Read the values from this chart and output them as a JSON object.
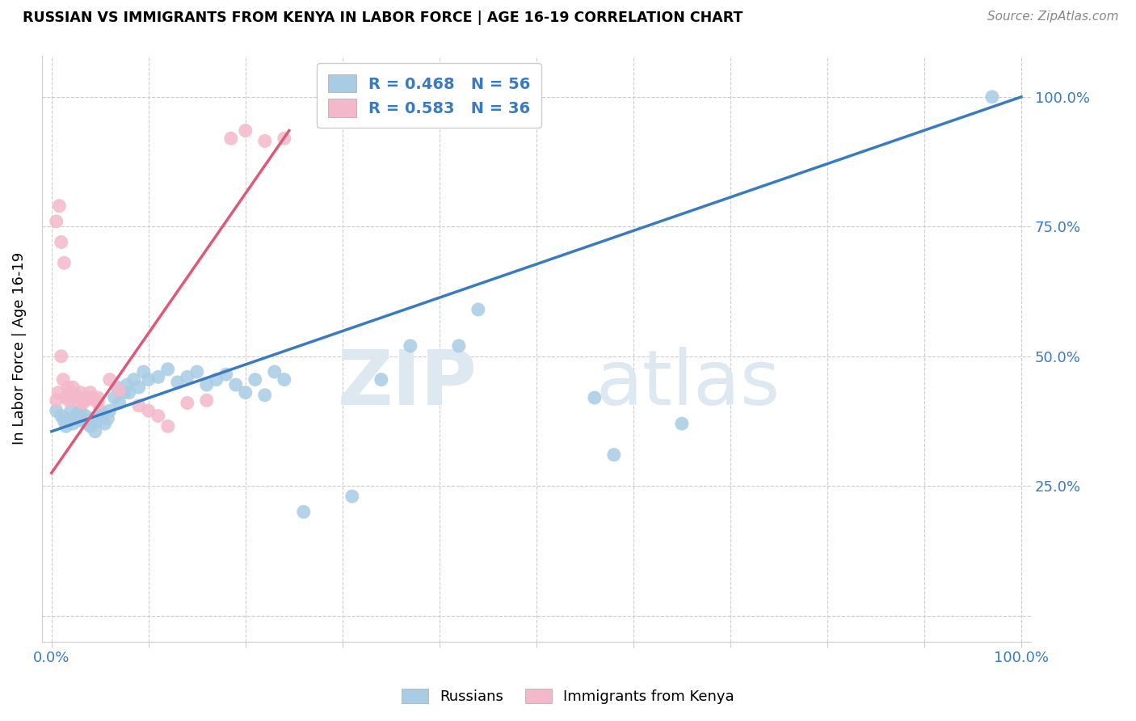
{
  "title": "RUSSIAN VS IMMIGRANTS FROM KENYA IN LABOR FORCE | AGE 16-19 CORRELATION CHART",
  "source": "Source: ZipAtlas.com",
  "ylabel_label": "In Labor Force | Age 16-19",
  "legend_entry1": "R = 0.468   N = 56",
  "legend_entry2": "R = 0.583   N = 36",
  "legend_label1": "Russians",
  "legend_label2": "Immigrants from Kenya",
  "blue_color": "#a8cce4",
  "pink_color": "#f4b8cb",
  "blue_line_color": "#3a7abf",
  "pink_line_color": "#e05878",
  "legend_text_color": "#3a7abf",
  "watermark_zip": "ZIP",
  "watermark_atlas": "atlas",
  "blue_dots": [
    [
      0.005,
      0.395
    ],
    [
      0.01,
      0.385
    ],
    [
      0.013,
      0.375
    ],
    [
      0.015,
      0.365
    ],
    [
      0.018,
      0.38
    ],
    [
      0.02,
      0.395
    ],
    [
      0.022,
      0.37
    ],
    [
      0.025,
      0.38
    ],
    [
      0.027,
      0.39
    ],
    [
      0.03,
      0.395
    ],
    [
      0.032,
      0.375
    ],
    [
      0.035,
      0.385
    ],
    [
      0.037,
      0.37
    ],
    [
      0.04,
      0.365
    ],
    [
      0.042,
      0.38
    ],
    [
      0.045,
      0.355
    ],
    [
      0.048,
      0.375
    ],
    [
      0.05,
      0.395
    ],
    [
      0.052,
      0.385
    ],
    [
      0.055,
      0.37
    ],
    [
      0.058,
      0.38
    ],
    [
      0.06,
      0.395
    ],
    [
      0.065,
      0.42
    ],
    [
      0.068,
      0.44
    ],
    [
      0.07,
      0.41
    ],
    [
      0.075,
      0.43
    ],
    [
      0.078,
      0.445
    ],
    [
      0.08,
      0.43
    ],
    [
      0.085,
      0.455
    ],
    [
      0.09,
      0.44
    ],
    [
      0.095,
      0.47
    ],
    [
      0.1,
      0.455
    ],
    [
      0.11,
      0.46
    ],
    [
      0.12,
      0.475
    ],
    [
      0.13,
      0.45
    ],
    [
      0.14,
      0.46
    ],
    [
      0.15,
      0.47
    ],
    [
      0.16,
      0.445
    ],
    [
      0.17,
      0.455
    ],
    [
      0.18,
      0.465
    ],
    [
      0.19,
      0.445
    ],
    [
      0.2,
      0.43
    ],
    [
      0.21,
      0.455
    ],
    [
      0.22,
      0.425
    ],
    [
      0.23,
      0.47
    ],
    [
      0.24,
      0.455
    ],
    [
      0.26,
      0.2
    ],
    [
      0.31,
      0.23
    ],
    [
      0.34,
      0.455
    ],
    [
      0.37,
      0.52
    ],
    [
      0.42,
      0.52
    ],
    [
      0.44,
      0.59
    ],
    [
      0.56,
      0.42
    ],
    [
      0.58,
      0.31
    ],
    [
      0.65,
      0.37
    ],
    [
      0.97,
      1.0
    ]
  ],
  "pink_dots": [
    [
      0.005,
      0.415
    ],
    [
      0.007,
      0.43
    ],
    [
      0.01,
      0.5
    ],
    [
      0.012,
      0.455
    ],
    [
      0.015,
      0.42
    ],
    [
      0.017,
      0.44
    ],
    [
      0.018,
      0.415
    ],
    [
      0.02,
      0.43
    ],
    [
      0.022,
      0.44
    ],
    [
      0.025,
      0.425
    ],
    [
      0.027,
      0.415
    ],
    [
      0.03,
      0.43
    ],
    [
      0.032,
      0.41
    ],
    [
      0.035,
      0.415
    ],
    [
      0.037,
      0.42
    ],
    [
      0.04,
      0.43
    ],
    [
      0.042,
      0.42
    ],
    [
      0.045,
      0.415
    ],
    [
      0.048,
      0.41
    ],
    [
      0.005,
      0.76
    ],
    [
      0.008,
      0.79
    ],
    [
      0.01,
      0.72
    ],
    [
      0.013,
      0.68
    ],
    [
      0.048,
      0.42
    ],
    [
      0.06,
      0.455
    ],
    [
      0.07,
      0.435
    ],
    [
      0.09,
      0.405
    ],
    [
      0.1,
      0.395
    ],
    [
      0.11,
      0.385
    ],
    [
      0.12,
      0.365
    ],
    [
      0.14,
      0.41
    ],
    [
      0.16,
      0.415
    ],
    [
      0.185,
      0.92
    ],
    [
      0.2,
      0.935
    ],
    [
      0.22,
      0.915
    ],
    [
      0.24,
      0.92
    ]
  ],
  "xlim": [
    -0.01,
    1.01
  ],
  "ylim": [
    -0.05,
    1.08
  ],
  "blue_line_x": [
    0.0,
    1.0
  ],
  "blue_line_y": [
    0.355,
    1.0
  ],
  "pink_line_x": [
    0.0,
    0.245
  ],
  "pink_line_y": [
    0.275,
    0.935
  ],
  "x_ticks": [
    0.0,
    0.1,
    0.2,
    0.3,
    0.4,
    0.5,
    0.6,
    0.7,
    0.8,
    0.9,
    1.0
  ],
  "x_label_ticks": [
    0.0,
    1.0
  ],
  "y_ticks": [
    0.0,
    0.25,
    0.5,
    0.75,
    1.0
  ],
  "y_tick_labels": [
    "",
    "25.0%",
    "50.0%",
    "75.0%",
    "100.0%"
  ]
}
